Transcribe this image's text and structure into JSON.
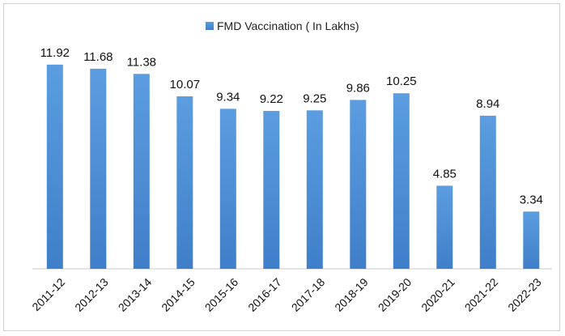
{
  "chart_data": {
    "type": "bar",
    "title": "",
    "xlabel": "",
    "ylabel": "",
    "legend": {
      "placement": "top-center",
      "entries": [
        "FMD Vaccination ( In Lakhs)"
      ]
    },
    "grid": false,
    "categories": [
      "2011-12",
      "2012-13",
      "2013-14",
      "2014-15",
      "2015-16",
      "2016-17",
      "2017-18",
      "2018-19",
      "2019-20",
      "2020-21",
      "2021-22",
      "2022-23"
    ],
    "series": [
      {
        "name": "FMD Vaccination ( In Lakhs)",
        "color": "#4a8fd6",
        "values": [
          11.92,
          11.68,
          11.38,
          10.07,
          9.34,
          9.22,
          9.25,
          9.86,
          10.25,
          4.85,
          8.94,
          3.34
        ]
      }
    ],
    "ylim": [
      0,
      13
    ]
  }
}
